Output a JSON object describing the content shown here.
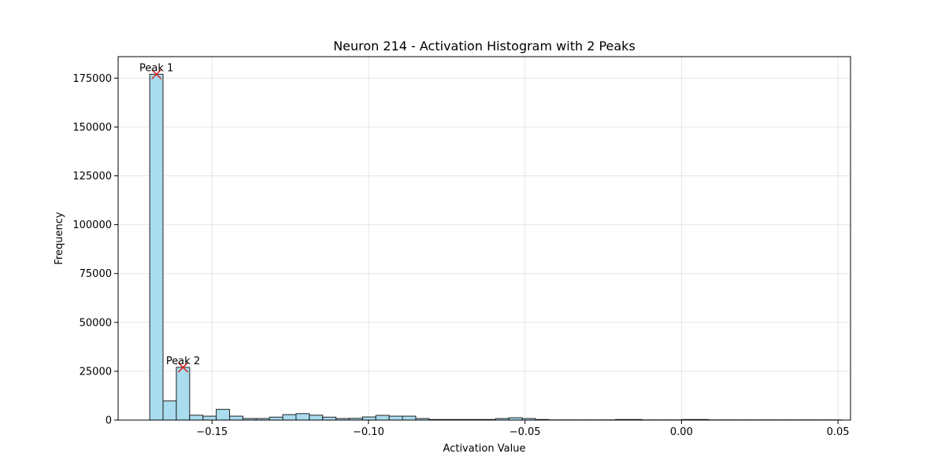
{
  "chart_data": {
    "type": "bar",
    "title": "Neuron 214 - Activation Histogram with 2 Peaks",
    "xlabel": "Activation Value",
    "ylabel": "Frequency",
    "xlim": [
      -0.18,
      0.054
    ],
    "ylim": [
      0,
      186000
    ],
    "grid": true,
    "bar_color": "#a8dcee",
    "bar_edge": "#222222",
    "peak_color": "#e02020",
    "xticks": [
      -0.15,
      -0.1,
      -0.05,
      0.0,
      0.05
    ],
    "xtick_labels": [
      "−0.15",
      "−0.10",
      "−0.05",
      "0.00",
      "0.05"
    ],
    "yticks": [
      0,
      25000,
      50000,
      75000,
      100000,
      125000,
      150000,
      175000
    ],
    "ytick_labels": [
      "0",
      "25000",
      "50000",
      "75000",
      "100000",
      "125000",
      "150000",
      "175000"
    ],
    "bin_start": -0.1699,
    "bin_width": 0.00425,
    "values": [
      177000,
      9800,
      27000,
      2500,
      2000,
      5500,
      2000,
      800,
      800,
      1500,
      2800,
      3300,
      2500,
      1500,
      800,
      900,
      1600,
      2400,
      2000,
      2000,
      800,
      300,
      300,
      300,
      300,
      300,
      800,
      1200,
      800,
      300,
      100,
      100,
      100,
      100,
      100,
      300,
      300,
      100,
      100,
      100,
      300,
      300,
      100,
      100,
      100,
      100,
      100,
      100,
      100,
      100,
      100,
      100
    ],
    "peaks": [
      {
        "label": "Peak 1",
        "x": -0.16775,
        "y": 177000
      },
      {
        "label": "Peak 2",
        "x": -0.15925,
        "y": 27000
      }
    ]
  }
}
